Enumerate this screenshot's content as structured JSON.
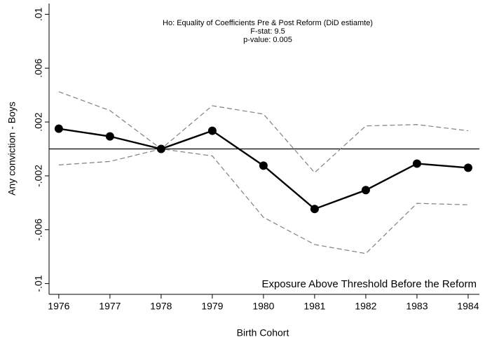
{
  "chart_data": {
    "type": "line",
    "annotations": [
      "Ho: Equality of Coefficients Pre & Post Reform (DiD estiamte)",
      "F-stat: 9.5",
      "p-value: 0.005"
    ],
    "corner_note": "Exposure Above Threshold Before the Reform",
    "x_label": "Birth Cohort",
    "y_label": "Any conviction - Boys",
    "x": [
      1976,
      1977,
      1978,
      1979,
      1980,
      1981,
      1982,
      1983,
      1984
    ],
    "series": [
      {
        "color": "#808080",
        "dashed": true,
        "markers": false,
        "values": [
          0.00425,
          0.00285,
          0,
          0.00321,
          0.00259,
          -0.00176,
          0.00171,
          0.00181,
          0.00135
        ]
      },
      {
        "color": "#808080",
        "dashed": true,
        "markers": false,
        "values": [
          -0.00119,
          -0.00093,
          0,
          -0.00052,
          -0.00508,
          -0.0071,
          -0.00777,
          -0.00404,
          -0.00415
        ]
      },
      {
        "color": "#000000",
        "dashed": false,
        "markers": true,
        "values": [
          0.0015,
          0.00093,
          0,
          0.00135,
          -0.00124,
          -0.00446,
          -0.00306,
          -0.00109,
          -0.0014
        ]
      }
    ],
    "reference_line": 0,
    "xlim": [
      1975.81,
      1984.22
    ],
    "ylim": [
      -0.0108,
      0.0108
    ],
    "xticks": [
      1976,
      1977,
      1978,
      1979,
      1980,
      1981,
      1982,
      1983,
      1984
    ],
    "yticks": [
      {
        "value": -0.01,
        "label": "-.01"
      },
      {
        "value": -0.006,
        "label": "-.006"
      },
      {
        "value": -0.002,
        "label": "-.002"
      },
      {
        "value": 0.002,
        "label": ".002"
      },
      {
        "value": 0.006,
        "label": ".006"
      },
      {
        "value": 0.01,
        "label": ".01"
      }
    ],
    "grid": false
  }
}
